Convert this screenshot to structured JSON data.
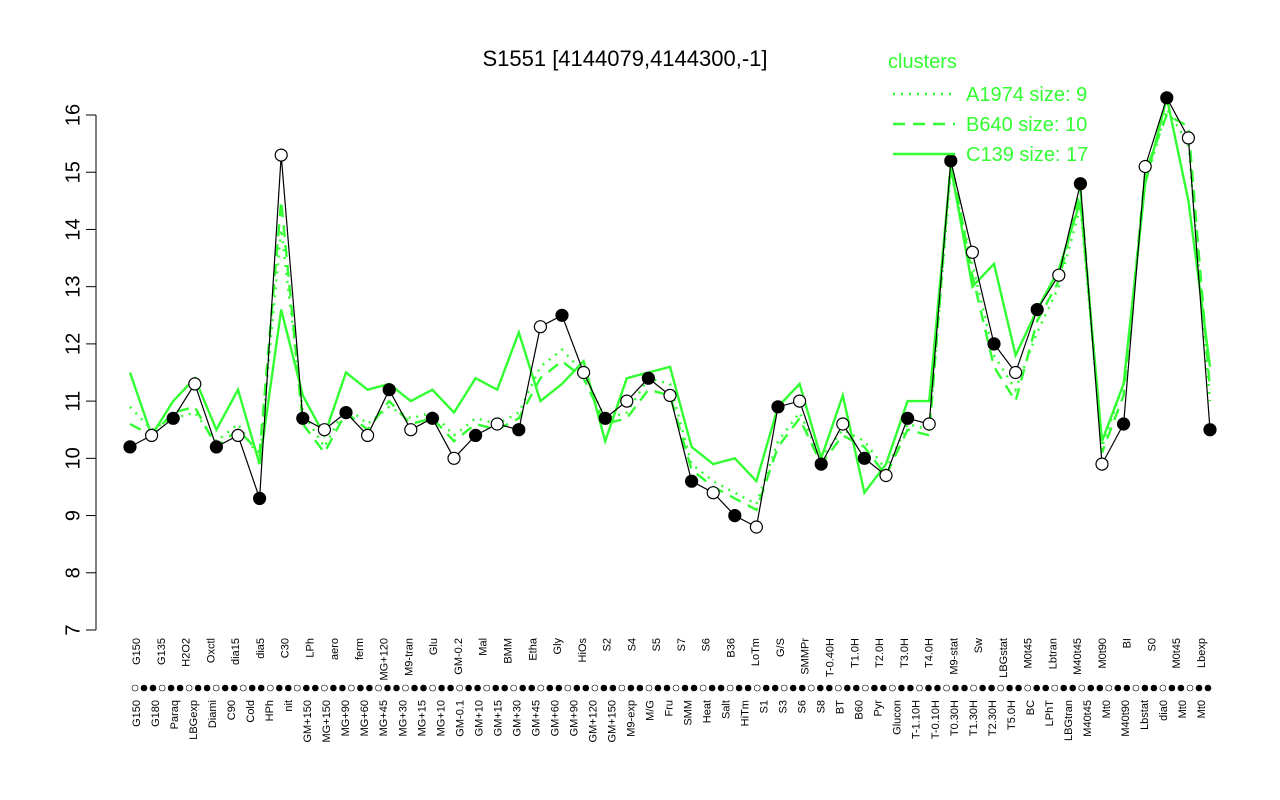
{
  "chart_data": {
    "type": "line",
    "title": "S1551 [4144079,4144300,-1]",
    "xlabel": "",
    "ylabel": "",
    "ylim": [
      7,
      16
    ],
    "yticks": [
      7,
      8,
      9,
      10,
      11,
      12,
      13,
      14,
      15,
      16
    ],
    "grid": false,
    "legend": {
      "title": "clusters",
      "placement": "top-right",
      "color": "#32ff32",
      "entries": [
        {
          "label": "A1974 size: 9",
          "style": "dotted"
        },
        {
          "label": "B640 size: 10",
          "style": "dashed"
        },
        {
          "label": "C139 size: 17",
          "style": "solid"
        }
      ]
    },
    "x_labels_top": [
      "G150",
      "G135",
      "H2O2",
      "Oxctl",
      "dia15",
      "dia5",
      "C30",
      "LPh",
      "aero",
      "ferm",
      "MG+120",
      "M9-tran",
      "Glu",
      "GM-0.2",
      "Mal",
      "BMM",
      "Etha",
      "Gly",
      "HiOs",
      "S2",
      "S4",
      "S5",
      "S7",
      "S6",
      "B36",
      "LoTm",
      "G/S",
      "SMMPr",
      "T-0.40H",
      "T1.0H",
      "T2.0H",
      "T3.0H",
      "T4.0H",
      "M9-stat",
      "Sw",
      "LBGstat",
      "M0t45",
      "Lbtran",
      "M40t45",
      "M0t90",
      "BI",
      "S0",
      "M0t45",
      "Lbexp"
    ],
    "x_labels_bottom": [
      "G150",
      "G180",
      "Paraq",
      "LBGexp",
      "Diami",
      "C90",
      "Cold",
      "HPh",
      "nit",
      "GM+150",
      "MG+150",
      "MG+90",
      "MG+60",
      "MG+45",
      "MG+30",
      "MG+15",
      "MG+10",
      "GM-0.1",
      "GM+10",
      "GM+15",
      "GM+30",
      "GM+45",
      "GM+60",
      "GM+90",
      "GM+120",
      "GM+150",
      "M9-exp",
      "M/G",
      "Fru",
      "SMM",
      "Heat",
      "Salt",
      "HiTm",
      "S1",
      "S3",
      "S6",
      "S8",
      "BT",
      "B60",
      "Pyr",
      "Glucon",
      "T-1.10H",
      "T-0.10H",
      "T0.30H",
      "T1.30H",
      "T2.30H",
      "T5.0H",
      "BC",
      "LPhT",
      "LBGtran",
      "M40t45",
      "Mt0",
      "M40t90",
      "Lbstat",
      "dia0",
      "Mt0",
      "Mt0"
    ],
    "series": [
      {
        "name": "A1974 size: 9",
        "style": "dotted",
        "color": "#32ff32",
        "x": [
          0,
          2,
          4,
          6,
          8,
          10,
          12,
          14,
          16,
          18,
          20,
          22,
          24,
          26,
          28,
          30,
          32,
          34,
          36,
          38,
          40,
          42,
          44,
          46,
          48,
          50,
          52,
          54,
          56,
          58,
          60,
          62,
          64,
          66,
          68,
          70,
          72,
          74,
          76,
          78,
          80,
          82,
          84,
          86,
          88,
          90,
          92,
          94,
          96,
          98,
          100
        ],
        "values": [
          10.9,
          10.5,
          10.7,
          10.8,
          10.3,
          10.6,
          10.0,
          14.0,
          10.8,
          10.2,
          10.9,
          10.6,
          10.9,
          10.7,
          10.8,
          10.4,
          10.7,
          10.6,
          10.8,
          11.6,
          11.9,
          11.5,
          10.7,
          10.8,
          11.4,
          11.3,
          9.9,
          9.6,
          9.4,
          9.2,
          10.3,
          10.8,
          10.0,
          10.5,
          10.3,
          9.8,
          10.6,
          10.5,
          15.0,
          13.4,
          11.8,
          11.2,
          12.2,
          13.0,
          14.4,
          10.2,
          11.3,
          14.8,
          16.1,
          15.5,
          11.0
        ]
      },
      {
        "name": "B640 size: 10",
        "style": "dashed",
        "color": "#32ff32",
        "x": [
          0,
          2,
          4,
          6,
          8,
          10,
          12,
          14,
          16,
          18,
          20,
          22,
          24,
          26,
          28,
          30,
          32,
          34,
          36,
          38,
          40,
          42,
          44,
          46,
          48,
          50,
          52,
          54,
          56,
          58,
          60,
          62,
          64,
          66,
          68,
          70,
          72,
          74,
          76,
          78,
          80,
          82,
          84,
          86,
          88,
          90,
          92,
          94,
          96,
          98,
          100
        ],
        "values": [
          10.6,
          10.4,
          10.8,
          10.9,
          10.2,
          10.5,
          10.1,
          14.5,
          10.6,
          10.1,
          10.8,
          10.5,
          11.0,
          10.6,
          10.7,
          10.3,
          10.6,
          10.5,
          10.7,
          11.4,
          11.7,
          11.4,
          10.6,
          10.7,
          11.2,
          11.1,
          9.8,
          9.5,
          9.3,
          9.1,
          10.2,
          10.7,
          9.9,
          10.4,
          10.2,
          9.7,
          10.5,
          10.4,
          15.2,
          13.2,
          11.6,
          11.0,
          12.4,
          13.1,
          14.7,
          10.1,
          11.1,
          15.0,
          16.0,
          15.8,
          11.2
        ]
      },
      {
        "name": "C139 size: 17",
        "style": "solid",
        "color": "#32ff32",
        "x": [
          0,
          2,
          4,
          6,
          8,
          10,
          12,
          14,
          16,
          18,
          20,
          22,
          24,
          26,
          28,
          30,
          32,
          34,
          36,
          38,
          40,
          42,
          44,
          46,
          48,
          50,
          52,
          54,
          56,
          58,
          60,
          62,
          64,
          66,
          68,
          70,
          72,
          74,
          76,
          78,
          80,
          82,
          84,
          86,
          88,
          90,
          92,
          94,
          96,
          98,
          100
        ],
        "values": [
          11.5,
          10.4,
          11.0,
          11.4,
          10.5,
          11.2,
          9.9,
          12.6,
          11.1,
          10.4,
          11.5,
          11.2,
          11.3,
          11.0,
          11.2,
          10.8,
          11.4,
          11.2,
          12.2,
          11.0,
          11.3,
          11.7,
          10.3,
          11.4,
          11.5,
          11.6,
          10.2,
          9.9,
          10.0,
          9.6,
          10.9,
          11.3,
          10.0,
          11.1,
          9.4,
          9.9,
          11.0,
          11.0,
          15.1,
          13.0,
          13.4,
          11.8,
          12.6,
          13.3,
          14.5,
          10.3,
          11.3,
          14.8,
          16.3,
          14.5,
          11.6
        ]
      },
      {
        "name": "",
        "style": "black-line-points",
        "color": "#000000",
        "x": [
          0,
          2,
          4,
          6,
          8,
          10,
          12,
          14,
          16,
          18,
          20,
          22,
          24,
          26,
          28,
          30,
          32,
          34,
          36,
          38,
          40,
          42,
          44,
          46,
          48,
          50,
          52,
          54,
          56,
          58,
          60,
          62,
          64,
          66,
          68,
          70,
          72,
          74,
          76,
          78,
          80,
          82,
          84,
          86,
          88,
          90,
          92,
          94,
          96,
          98,
          100
        ],
        "values": [
          10.2,
          10.4,
          10.7,
          11.3,
          10.2,
          10.4,
          9.3,
          15.3,
          10.7,
          10.5,
          10.8,
          10.4,
          11.2,
          10.5,
          10.7,
          10.0,
          10.4,
          10.6,
          10.5,
          12.3,
          12.5,
          11.5,
          10.7,
          11.0,
          11.4,
          11.1,
          9.6,
          9.4,
          9.0,
          8.8,
          10.9,
          11.0,
          9.9,
          10.6,
          10.0,
          9.7,
          10.7,
          10.6,
          15.2,
          13.6,
          12.0,
          11.5,
          12.6,
          13.2,
          14.8,
          9.9,
          10.6,
          15.1,
          16.3,
          15.6,
          10.5
        ]
      }
    ]
  }
}
